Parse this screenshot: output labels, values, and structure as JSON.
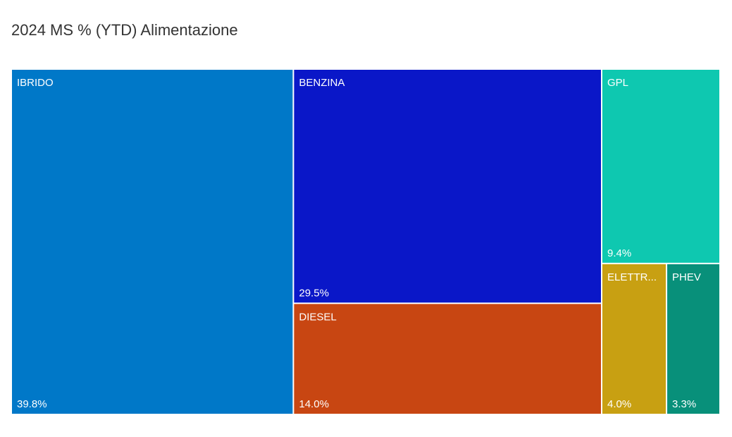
{
  "chart_data": {
    "type": "treemap",
    "title": "2024 MS % (YTD) Alimentazione",
    "categories": [
      "IBRIDO",
      "BENZINA",
      "DIESEL",
      "GPL",
      "ELETTR...",
      "PHEV"
    ],
    "values": [
      39.8,
      29.5,
      14.0,
      9.4,
      4.0,
      3.3
    ],
    "value_labels": [
      "39.8%",
      "29.5%",
      "14.0%",
      "9.4%",
      "4.0%",
      "3.3%"
    ],
    "colors": [
      "#0078c8",
      "#0a17c8",
      "#c84612",
      "#0ec8b0",
      "#c8a012",
      "#08907a"
    ]
  }
}
